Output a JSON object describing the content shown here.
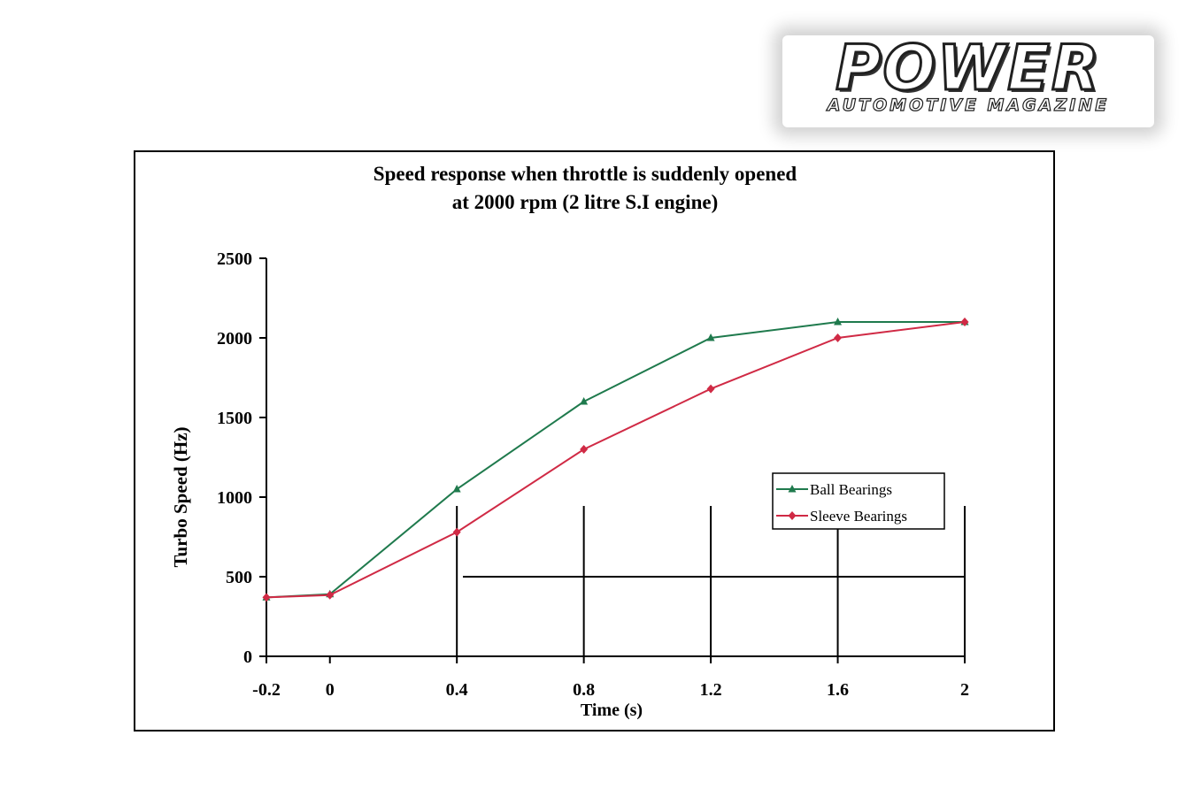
{
  "brand": {
    "name": "POWER",
    "tagline": "AUTOMOTIVE MAGAZINE"
  },
  "chart_data": {
    "type": "line",
    "title": "Speed response when throttle is suddenly opened",
    "subtitle": "at 2000 rpm (2 litre S.I engine)",
    "xlabel": "Time (s)",
    "ylabel": "Turbo Speed (Hz)",
    "x": [
      -0.2,
      0,
      0.4,
      0.8,
      1.2,
      1.6,
      2
    ],
    "x_tick_labels": [
      "-0.2",
      "0",
      "0.4",
      "0.8",
      "1.2",
      "1.6",
      "2"
    ],
    "y_ticks": [
      0,
      500,
      1000,
      1500,
      2000,
      2500
    ],
    "ylim": [
      0,
      2500
    ],
    "grid": false,
    "legend_position": "right",
    "series": [
      {
        "name": "Ball Bearings",
        "color": "#1f7a4d",
        "marker": "triangle",
        "values": [
          370,
          390,
          1050,
          1600,
          2000,
          2100,
          2100
        ]
      },
      {
        "name": "Sleeve Bearings",
        "color": "#d02a45",
        "marker": "diamond",
        "values": [
          370,
          385,
          780,
          1300,
          1680,
          2000,
          2100
        ]
      }
    ]
  }
}
